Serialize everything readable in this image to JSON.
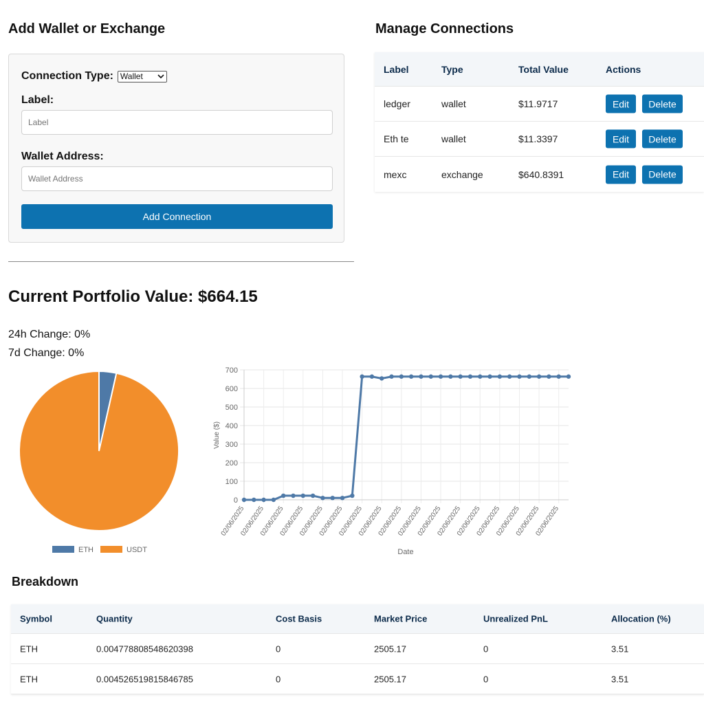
{
  "add_form": {
    "title": "Add Wallet or Exchange",
    "connection_type_label": "Connection Type:",
    "connection_type_value": "Wallet",
    "label_label": "Label:",
    "label_placeholder": "Label",
    "wallet_label": "Wallet Address:",
    "wallet_placeholder": "Wallet Address",
    "submit_label": "Add Connection"
  },
  "connections": {
    "title": "Manage Connections",
    "headers": [
      "Label",
      "Type",
      "Total Value",
      "Actions"
    ],
    "edit_label": "Edit",
    "delete_label": "Delete",
    "rows": [
      {
        "label": "ledger",
        "type": "wallet",
        "total": "$11.9717"
      },
      {
        "label": "Eth te",
        "type": "wallet",
        "total": "$11.3397"
      },
      {
        "label": "mexc",
        "type": "exchange",
        "total": "$640.8391"
      }
    ]
  },
  "portfolio": {
    "title": "Current Portfolio Value: $664.15",
    "change_24h": "24h Change: 0%",
    "change_7d": "7d Change: 0%"
  },
  "colors": {
    "eth": "#4e79a7",
    "usdt": "#f28e2b",
    "accent": "#0d72b0"
  },
  "chart_data": [
    {
      "type": "pie",
      "labels": [
        "ETH",
        "USDT"
      ],
      "values": [
        3.51,
        96.49
      ],
      "legend": "bottom"
    },
    {
      "type": "line",
      "xlabel": "Date",
      "ylabel": "Value ($)",
      "ylim": [
        0,
        700
      ],
      "yticks": [
        0,
        100,
        200,
        300,
        400,
        500,
        600,
        700
      ],
      "x": [
        "02/06/2025",
        "02/06/2025",
        "02/06/2025",
        "02/06/2025",
        "02/06/2025",
        "02/06/2025",
        "02/06/2025",
        "02/06/2025",
        "02/06/2025",
        "02/06/2025",
        "02/06/2025",
        "02/06/2025",
        "02/06/2025",
        "02/06/2025",
        "02/06/2025",
        "02/06/2025",
        "02/06/2025",
        "02/06/2025",
        "02/06/2025",
        "02/06/2025",
        "02/06/2025",
        "02/06/2025",
        "02/06/2025",
        "02/06/2025",
        "02/06/2025",
        "02/06/2025",
        "02/06/2025",
        "02/06/2025",
        "02/06/2025",
        "02/06/2025",
        "02/06/2025",
        "02/06/2025",
        "02/06/2025",
        "02/06/2025"
      ],
      "series": [
        {
          "name": "Value ($)",
          "values": [
            0,
            0,
            0,
            0,
            22,
            22,
            22,
            22,
            10,
            10,
            10,
            22,
            664,
            664,
            654,
            664,
            664,
            664,
            664,
            664,
            664,
            664,
            664,
            664,
            664,
            664,
            664,
            664,
            664,
            664,
            664,
            664,
            664,
            664
          ]
        }
      ]
    }
  ],
  "breakdown": {
    "title": "Breakdown",
    "headers": [
      "Symbol",
      "Quantity",
      "Cost Basis",
      "Market Price",
      "Unrealized PnL",
      "Allocation (%)"
    ],
    "rows": [
      {
        "symbol": "ETH",
        "quantity": "0.004778808548620398",
        "cost": "0",
        "price": "2505.17",
        "pnl": "0",
        "alloc": "3.51"
      },
      {
        "symbol": "ETH",
        "quantity": "0.004526519815846785",
        "cost": "0",
        "price": "2505.17",
        "pnl": "0",
        "alloc": "3.51"
      }
    ]
  }
}
